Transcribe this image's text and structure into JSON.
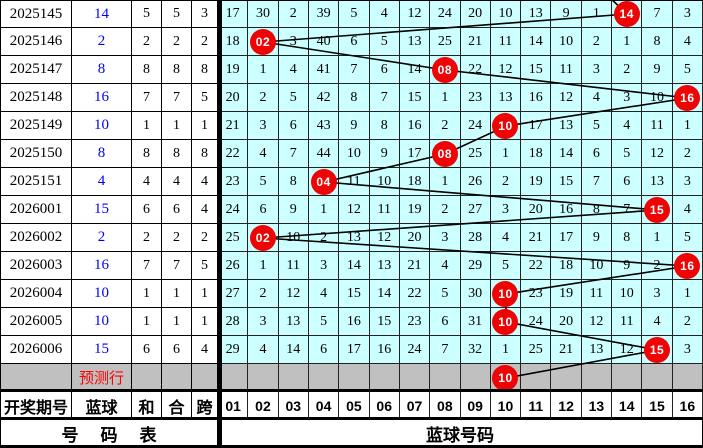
{
  "colors": {
    "grid_cell_bg": "#ccffff",
    "white_bg": "#ffffff",
    "prediction_row_bg": "#c0c0c0",
    "ball_color": "#ee0404",
    "ball_text_color": "#ffffff",
    "blue_value_color": "#0000ff",
    "prediction_label_color": "#ff0000",
    "trend_line_color": "#000000",
    "border_color": "#000000"
  },
  "chart_data": {
    "type": "table",
    "left_headers": [
      "开奖期号",
      "蓝球",
      "和",
      "合",
      "跨"
    ],
    "ball_headers": [
      "01",
      "02",
      "03",
      "04",
      "05",
      "06",
      "07",
      "08",
      "09",
      "10",
      "11",
      "12",
      "13",
      "14",
      "15",
      "16"
    ],
    "footer": {
      "left_label": "号码表",
      "right_label": "蓝球号码"
    },
    "prediction_row": {
      "label": "预测行",
      "predicted_ball": 10
    },
    "rows": [
      {
        "period": "2025145",
        "blue": 14,
        "sum": 5,
        "he": 5,
        "kua": 3,
        "miss": [
          17,
          30,
          2,
          39,
          5,
          4,
          12,
          24,
          20,
          10,
          13,
          9,
          1,
          null,
          7,
          3
        ]
      },
      {
        "period": "2025146",
        "blue": 2,
        "sum": 2,
        "he": 2,
        "kua": 2,
        "miss": [
          18,
          null,
          3,
          40,
          6,
          5,
          13,
          25,
          21,
          11,
          14,
          10,
          2,
          1,
          8,
          4
        ]
      },
      {
        "period": "2025147",
        "blue": 8,
        "sum": 8,
        "he": 8,
        "kua": 8,
        "miss": [
          19,
          1,
          4,
          41,
          7,
          6,
          14,
          null,
          22,
          12,
          15,
          11,
          3,
          2,
          9,
          5
        ]
      },
      {
        "period": "2025148",
        "blue": 16,
        "sum": 7,
        "he": 7,
        "kua": 5,
        "miss": [
          20,
          2,
          5,
          42,
          8,
          7,
          15,
          1,
          23,
          13,
          16,
          12,
          4,
          3,
          10,
          null
        ]
      },
      {
        "period": "2025149",
        "blue": 10,
        "sum": 1,
        "he": 1,
        "kua": 1,
        "miss": [
          21,
          3,
          6,
          43,
          9,
          8,
          16,
          2,
          24,
          null,
          17,
          13,
          5,
          4,
          11,
          1
        ]
      },
      {
        "period": "2025150",
        "blue": 8,
        "sum": 8,
        "he": 8,
        "kua": 8,
        "miss": [
          22,
          4,
          7,
          44,
          10,
          9,
          17,
          null,
          25,
          1,
          18,
          14,
          6,
          5,
          12,
          2
        ]
      },
      {
        "period": "2025151",
        "blue": 4,
        "sum": 4,
        "he": 4,
        "kua": 4,
        "miss": [
          23,
          5,
          8,
          null,
          11,
          10,
          18,
          1,
          26,
          2,
          19,
          15,
          7,
          6,
          13,
          3
        ]
      },
      {
        "period": "2026001",
        "blue": 15,
        "sum": 6,
        "he": 6,
        "kua": 4,
        "miss": [
          24,
          6,
          9,
          1,
          12,
          11,
          19,
          2,
          27,
          3,
          20,
          16,
          8,
          7,
          null,
          4
        ]
      },
      {
        "period": "2026002",
        "blue": 2,
        "sum": 2,
        "he": 2,
        "kua": 2,
        "miss": [
          25,
          null,
          10,
          2,
          13,
          12,
          20,
          3,
          28,
          4,
          21,
          17,
          9,
          8,
          1,
          5
        ]
      },
      {
        "period": "2026003",
        "blue": 16,
        "sum": 7,
        "he": 7,
        "kua": 5,
        "miss": [
          26,
          1,
          11,
          3,
          14,
          13,
          21,
          4,
          29,
          5,
          22,
          18,
          10,
          9,
          2,
          null
        ]
      },
      {
        "period": "2026004",
        "blue": 10,
        "sum": 1,
        "he": 1,
        "kua": 1,
        "miss": [
          27,
          2,
          12,
          4,
          15,
          14,
          22,
          5,
          30,
          null,
          23,
          19,
          11,
          10,
          3,
          1
        ]
      },
      {
        "period": "2026005",
        "blue": 10,
        "sum": 1,
        "he": 1,
        "kua": 1,
        "miss": [
          28,
          3,
          13,
          5,
          16,
          15,
          23,
          6,
          31,
          null,
          24,
          20,
          12,
          11,
          4,
          2
        ]
      },
      {
        "period": "2026006",
        "blue": 15,
        "sum": 6,
        "he": 6,
        "kua": 4,
        "miss": [
          29,
          4,
          14,
          6,
          17,
          16,
          24,
          7,
          32,
          1,
          25,
          21,
          13,
          12,
          null,
          3
        ]
      }
    ]
  }
}
